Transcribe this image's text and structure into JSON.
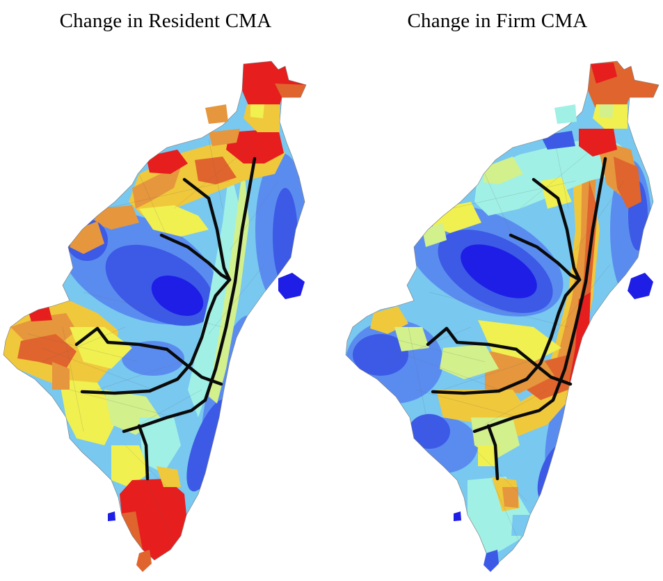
{
  "maps": [
    {
      "title": "Change in Resident CMA",
      "palette": {
        "dark_blue": "#1e1ee6",
        "blue": "#3c5ae6",
        "mid_blue": "#5a8cf0",
        "light_blue": "#78c8f0",
        "cyan": "#a0f0e6",
        "light_green": "#d2f08c",
        "yellow": "#f0f050",
        "light_orange": "#f0c83c",
        "orange": "#e6963c",
        "dark_orange": "#e0642d",
        "red": "#e61e1e"
      }
    },
    {
      "title": "Change in Firm CMA",
      "palette": {
        "dark_blue": "#1e1ee6",
        "blue": "#3c5ae6",
        "mid_blue": "#5a8cf0",
        "light_blue": "#78c8f0",
        "cyan": "#a0f0e6",
        "light_green": "#d2f08c",
        "yellow": "#f0f050",
        "light_orange": "#f0c83c",
        "orange": "#e6963c",
        "dark_orange": "#e0642d",
        "red": "#e61e1e"
      }
    }
  ],
  "transit_line_color": "#0a0a0a"
}
